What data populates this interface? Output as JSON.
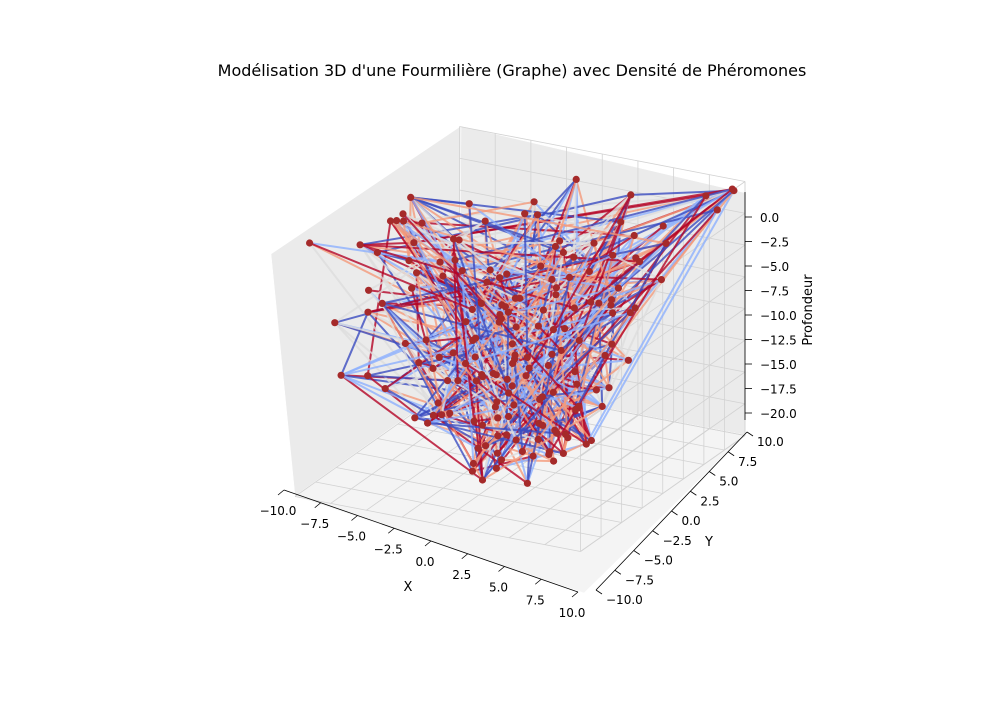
{
  "chart_data": {
    "type": "3d-network-graph",
    "title": "Modélisation 3D d'une Fourmilière (Graphe) avec Densité de Phéromones",
    "xlabel": "X",
    "ylabel": "Y",
    "zlabel": "Profondeur",
    "xlim": [
      -10,
      10
    ],
    "ylim": [
      -10,
      10
    ],
    "zlim": [
      -20,
      0
    ],
    "x_ticks": [
      "−10.0",
      "−7.5",
      "−5.0",
      "−2.5",
      "0.0",
      "2.5",
      "5.0",
      "7.5",
      "10.0"
    ],
    "y_ticks": [
      "−10.0",
      "−7.5",
      "−5.0",
      "−2.5",
      "0.0",
      "2.5",
      "5.0",
      "7.5",
      "10.0"
    ],
    "z_ticks": [
      "−20.0",
      "−17.5",
      "−15.0",
      "−12.5",
      "−10.0",
      "−7.5",
      "−5.0",
      "−2.5",
      "0.0"
    ],
    "grid": true,
    "node_color": "#a52a2a",
    "edge_colormap": "coolwarm",
    "edge_colormap_stops": [
      "#3b4cc0",
      "#8db0fe",
      "#dddddd",
      "#f49a7b",
      "#b40426"
    ],
    "nodes_estimated": [
      {
        "x": 9.5,
        "y": 9.4,
        "z": -0.5
      },
      {
        "x": 9.0,
        "y": 9.8,
        "z": -0.3
      },
      {
        "x": 7.5,
        "y": 9.5,
        "z": -1.2
      },
      {
        "x": -9.7,
        "y": -2.0,
        "z": -2.0
      },
      {
        "x": -9.8,
        "y": -5.0,
        "z": -4.5
      },
      {
        "x": -9.5,
        "y": -7.5,
        "z": -6.0
      },
      {
        "x": -3.0,
        "y": 5.5,
        "z": -1.0
      },
      {
        "x": 3.0,
        "y": 8.5,
        "z": -2.0
      },
      {
        "x": 8.0,
        "y": 3.5,
        "z": -6.5
      },
      {
        "x": 6.5,
        "y": -1.5,
        "z": -14.5
      },
      {
        "x": 2.5,
        "y": -3.0,
        "z": -18.0
      },
      {
        "x": 1.0,
        "y": -5.5,
        "z": -17.5
      },
      {
        "x": -5.5,
        "y": -7.5,
        "z": -12.0
      },
      {
        "x": -7.0,
        "y": -8.5,
        "z": -11.5
      },
      {
        "x": -2.5,
        "y": -8.0,
        "z": -14.5
      },
      {
        "x": 0.5,
        "y": 1.0,
        "z": -9.0
      },
      {
        "x": -1.5,
        "y": 2.5,
        "z": -6.5
      },
      {
        "x": 3.5,
        "y": 0.5,
        "z": -8.0
      },
      {
        "x": -4.0,
        "y": -1.0,
        "z": -8.5
      },
      {
        "x": 1.5,
        "y": 4.0,
        "z": -4.5
      },
      {
        "x": 5.0,
        "y": 5.5,
        "z": -5.0
      },
      {
        "x": -6.0,
        "y": 2.0,
        "z": -5.5
      },
      {
        "x": 4.5,
        "y": -4.0,
        "z": -11.0
      },
      {
        "x": -2.0,
        "y": -4.5,
        "z": -11.5
      },
      {
        "x": 7.0,
        "y": 6.0,
        "z": -3.0
      },
      {
        "x": -7.5,
        "y": 4.0,
        "z": -2.5
      },
      {
        "x": 0.0,
        "y": 6.5,
        "z": -2.0
      },
      {
        "x": 2.0,
        "y": -1.5,
        "z": -12.5
      },
      {
        "x": -3.5,
        "y": 1.5,
        "z": -10.0
      },
      {
        "x": 6.0,
        "y": 1.5,
        "z": -9.5
      }
    ]
  }
}
